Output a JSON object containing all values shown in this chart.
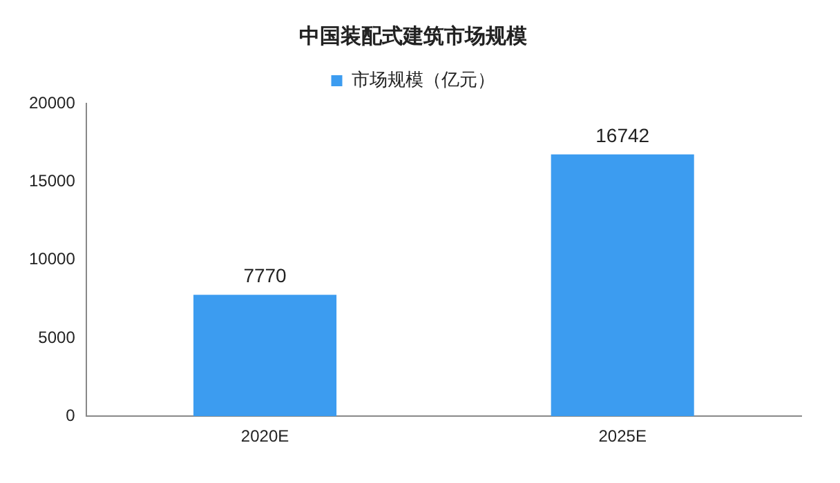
{
  "chart_data": {
    "type": "bar",
    "title": "中国装配式建筑市场规模",
    "categories": [
      "2020E",
      "2025E"
    ],
    "series": [
      {
        "name": "市场规模（亿元）",
        "color": "#3c9cf0",
        "values": [
          7770,
          16742
        ]
      }
    ],
    "ylim": [
      0,
      20000
    ],
    "yticks": [
      0,
      5000,
      10000,
      15000,
      20000
    ],
    "grid": false,
    "legend": "top",
    "data_labels": true
  }
}
